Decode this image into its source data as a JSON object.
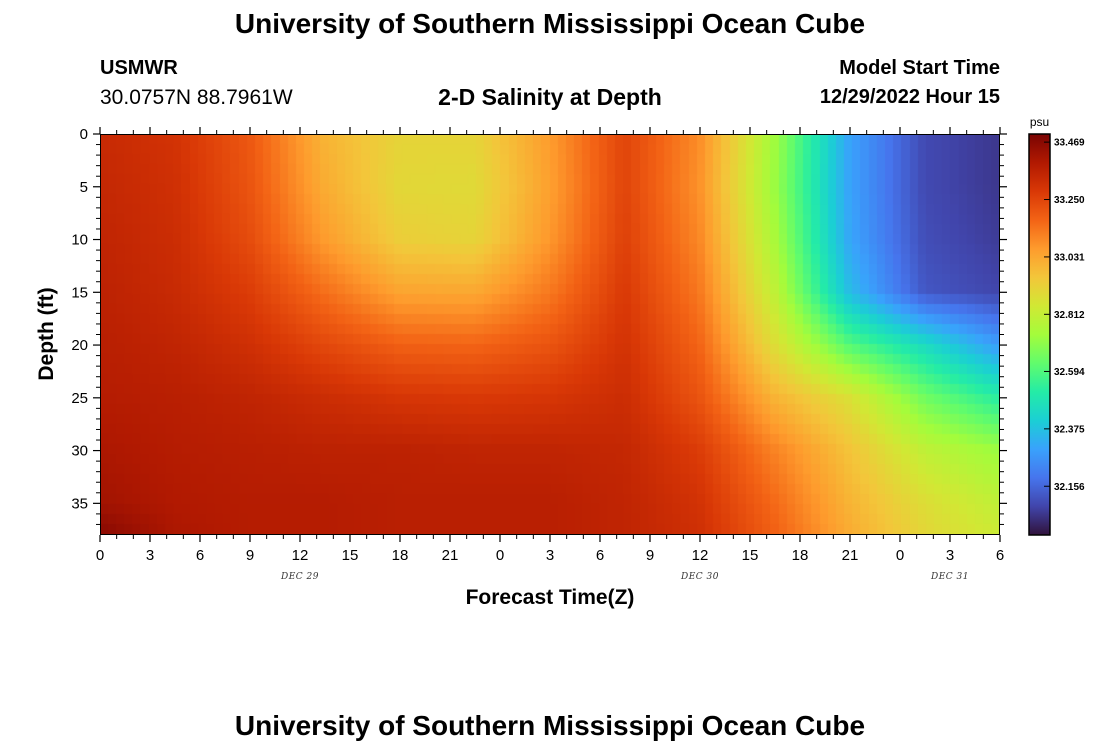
{
  "header": {
    "title": "University of Southern Mississippi Ocean Cube",
    "station": "USMWR",
    "coords": "30.0757N  88.7961W",
    "plot_title": "2-D Salinity at Depth",
    "model_label": "Model Start Time",
    "model_time": "12/29/2022 Hour 15"
  },
  "footer": {
    "title": "University of Southern Mississippi Ocean Cube"
  },
  "chart_data": {
    "type": "heatmap",
    "title": "2-D Salinity at Depth",
    "xlabel": "Forecast Time(Z)",
    "ylabel": "Depth (ft)",
    "x_tick_labels": [
      "0",
      "3",
      "6",
      "9",
      "12",
      "15",
      "18",
      "21",
      "0",
      "3",
      "6",
      "9",
      "12",
      "15",
      "18",
      "21",
      "0",
      "3",
      "6"
    ],
    "x_day_labels": [
      {
        "label": "DEC 29",
        "at_tick": 4
      },
      {
        "label": "DEC 30",
        "at_tick": 12
      },
      {
        "label": "DEC 31",
        "at_tick": 17
      }
    ],
    "y_tick_labels": [
      "0",
      "5",
      "10",
      "15",
      "20",
      "25",
      "30",
      "35"
    ],
    "ylim": [
      38,
      0
    ],
    "xlim_hours": [
      0,
      54
    ],
    "colorbar": {
      "unit": "psu",
      "min": 31.97,
      "max": 33.5,
      "ticks": [
        "33.469",
        "33.250",
        "33.031",
        "32.812",
        "32.594",
        "32.375",
        "32.156"
      ],
      "colors": [
        "#30123b",
        "#4145ab",
        "#4675ed",
        "#39a2fc",
        "#1bcfd4",
        "#24eca6",
        "#61fc6c",
        "#a4fc3b",
        "#d1e834",
        "#f3c63a",
        "#fe9b2d",
        "#f36315",
        "#d93806",
        "#b11901",
        "#7a0403"
      ]
    },
    "salinity_grid": {
      "x_hours": [
        0,
        4.5,
        9,
        13.5,
        18,
        22.5,
        27,
        31.5,
        36,
        40.5,
        45,
        49.5,
        54
      ],
      "depth_ft": [
        0,
        5,
        10,
        15,
        20,
        25,
        30,
        35,
        38
      ],
      "values": [
        [
          33.33,
          33.3,
          33.2,
          33.0,
          32.91,
          32.91,
          33.06,
          33.25,
          33.09,
          32.73,
          32.3,
          32.09,
          32.05
        ],
        [
          33.34,
          33.31,
          33.21,
          33.02,
          32.9,
          32.89,
          33.05,
          33.25,
          33.08,
          32.72,
          32.3,
          32.09,
          32.05
        ],
        [
          33.35,
          33.32,
          33.23,
          33.06,
          32.93,
          32.91,
          33.07,
          33.26,
          33.1,
          32.75,
          32.31,
          32.1,
          32.06
        ],
        [
          33.36,
          33.33,
          33.27,
          33.15,
          33.04,
          33.03,
          33.13,
          33.28,
          33.13,
          32.8,
          32.36,
          32.12,
          32.08
        ],
        [
          33.37,
          33.35,
          33.31,
          33.24,
          33.18,
          33.17,
          33.21,
          33.3,
          33.17,
          32.88,
          32.6,
          32.45,
          32.28
        ],
        [
          33.38,
          33.37,
          33.35,
          33.32,
          33.29,
          33.28,
          33.29,
          33.32,
          33.21,
          33.0,
          32.87,
          32.65,
          32.52
        ],
        [
          33.4,
          33.38,
          33.37,
          33.36,
          33.36,
          33.35,
          33.35,
          33.34,
          33.27,
          33.11,
          32.96,
          32.8,
          32.72
        ],
        [
          33.42,
          33.39,
          33.38,
          33.38,
          33.37,
          33.37,
          33.37,
          33.35,
          33.3,
          33.16,
          33.0,
          32.88,
          32.8
        ],
        [
          33.47,
          33.4,
          33.38,
          33.38,
          33.37,
          33.37,
          33.37,
          33.35,
          33.31,
          33.18,
          33.02,
          32.9,
          32.83
        ]
      ]
    }
  }
}
